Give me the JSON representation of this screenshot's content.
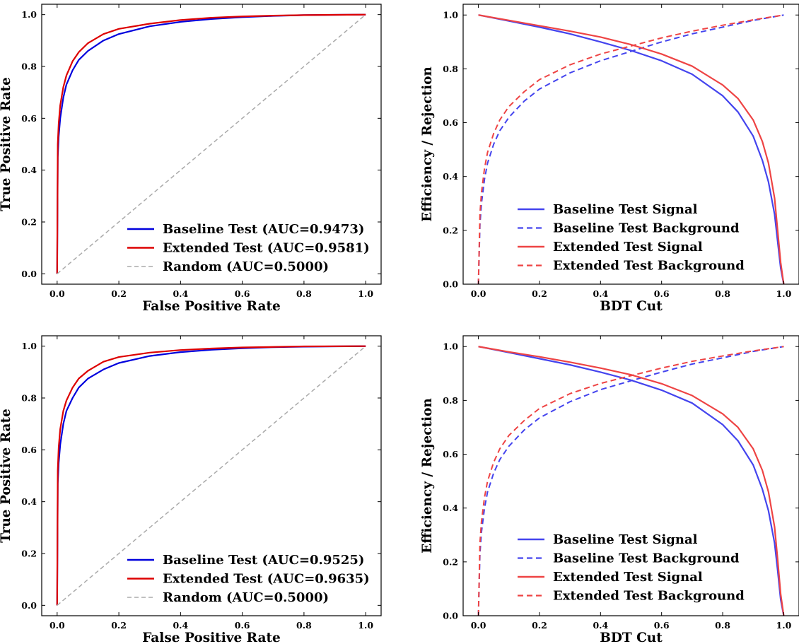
{
  "chart_data": [
    {
      "type": "line",
      "panel": "roc",
      "xlabel": "False Positive Rate",
      "ylabel": "True Positive Rate",
      "xlim": [
        -0.05,
        1.05
      ],
      "ylim": [
        -0.04,
        1.04
      ],
      "xticks": [
        "0.0",
        "0.2",
        "0.4",
        "0.6",
        "0.8",
        "1.0"
      ],
      "yticks": [
        "0.0",
        "0.2",
        "0.4",
        "0.6",
        "0.8",
        "1.0"
      ],
      "legend_position": "lower-right",
      "series": [
        {
          "name": "Baseline Test (AUC=0.9473)",
          "color": "#0000dd",
          "style": "solid",
          "x": [
            0,
            0.002,
            0.005,
            0.01,
            0.02,
            0.03,
            0.05,
            0.07,
            0.1,
            0.15,
            0.2,
            0.3,
            0.4,
            0.5,
            0.6,
            0.7,
            0.8,
            0.9,
            1.0
          ],
          "y": [
            0,
            0.45,
            0.53,
            0.6,
            0.68,
            0.73,
            0.785,
            0.825,
            0.86,
            0.9,
            0.925,
            0.955,
            0.972,
            0.983,
            0.99,
            0.995,
            0.998,
            0.999,
            1.0
          ]
        },
        {
          "name": "Extended Test (AUC=0.9581)",
          "color": "#dd0000",
          "style": "solid",
          "x": [
            0,
            0.002,
            0.005,
            0.01,
            0.02,
            0.03,
            0.05,
            0.07,
            0.1,
            0.15,
            0.2,
            0.3,
            0.4,
            0.5,
            0.6,
            0.7,
            0.8,
            0.9,
            1.0
          ],
          "y": [
            0,
            0.5,
            0.58,
            0.65,
            0.72,
            0.765,
            0.82,
            0.855,
            0.89,
            0.925,
            0.945,
            0.965,
            0.979,
            0.988,
            0.993,
            0.996,
            0.998,
            0.999,
            1.0
          ]
        },
        {
          "name": "Random (AUC=0.5000)",
          "color": "#aaaaaa",
          "style": "dashed",
          "x": [
            0,
            1
          ],
          "y": [
            0,
            1
          ]
        }
      ]
    },
    {
      "type": "line",
      "panel": "efficiency",
      "xlabel": "BDT Cut",
      "ylabel": "Efficiency / Rejection",
      "xlim": [
        -0.05,
        1.05
      ],
      "ylim": [
        0.0,
        1.04
      ],
      "xticks": [
        "0.0",
        "0.2",
        "0.4",
        "0.6",
        "0.8",
        "1.0"
      ],
      "yticks": [
        "0.0",
        "0.2",
        "0.4",
        "0.6",
        "0.8",
        "1.0"
      ],
      "legend_position": "lower-center",
      "series": [
        {
          "name": "Baseline Test Signal",
          "color": "#4444ee",
          "style": "solid",
          "x": [
            0,
            0.1,
            0.2,
            0.3,
            0.4,
            0.5,
            0.6,
            0.7,
            0.8,
            0.85,
            0.9,
            0.93,
            0.95,
            0.97,
            0.98,
            0.99,
            1.0
          ],
          "y": [
            1.0,
            0.978,
            0.955,
            0.93,
            0.9,
            0.868,
            0.83,
            0.78,
            0.7,
            0.64,
            0.55,
            0.46,
            0.38,
            0.26,
            0.16,
            0.06,
            0.0
          ]
        },
        {
          "name": "Baseline Test Background",
          "color": "#4444ee",
          "style": "dashed",
          "x": [
            0,
            0.005,
            0.01,
            0.02,
            0.03,
            0.05,
            0.07,
            0.1,
            0.15,
            0.2,
            0.3,
            0.4,
            0.5,
            0.6,
            0.7,
            0.8,
            0.9,
            1.0
          ],
          "y": [
            0.0,
            0.22,
            0.3,
            0.39,
            0.45,
            0.52,
            0.57,
            0.62,
            0.68,
            0.725,
            0.785,
            0.83,
            0.865,
            0.9,
            0.93,
            0.955,
            0.98,
            1.0
          ]
        },
        {
          "name": "Extended Test Signal",
          "color": "#ee4444",
          "style": "solid",
          "x": [
            0,
            0.1,
            0.2,
            0.3,
            0.4,
            0.5,
            0.6,
            0.7,
            0.8,
            0.85,
            0.9,
            0.93,
            0.95,
            0.97,
            0.98,
            0.99,
            1.0
          ],
          "y": [
            1.0,
            0.98,
            0.96,
            0.94,
            0.918,
            0.89,
            0.855,
            0.81,
            0.74,
            0.69,
            0.61,
            0.53,
            0.45,
            0.32,
            0.2,
            0.08,
            0.0
          ]
        },
        {
          "name": "Extended Test Background",
          "color": "#ee4444",
          "style": "dashed",
          "x": [
            0,
            0.005,
            0.01,
            0.02,
            0.03,
            0.05,
            0.07,
            0.1,
            0.15,
            0.2,
            0.3,
            0.4,
            0.5,
            0.6,
            0.7,
            0.8,
            0.9,
            1.0
          ],
          "y": [
            0.0,
            0.26,
            0.34,
            0.43,
            0.49,
            0.56,
            0.61,
            0.66,
            0.715,
            0.76,
            0.815,
            0.855,
            0.885,
            0.915,
            0.94,
            0.962,
            0.982,
            1.0
          ]
        }
      ]
    },
    {
      "type": "line",
      "panel": "roc",
      "xlabel": "False Positive Rate",
      "ylabel": "True Positive Rate",
      "xlim": [
        -0.05,
        1.05
      ],
      "ylim": [
        -0.04,
        1.04
      ],
      "xticks": [
        "0.0",
        "0.2",
        "0.4",
        "0.6",
        "0.8",
        "1.0"
      ],
      "yticks": [
        "0.0",
        "0.2",
        "0.4",
        "0.6",
        "0.8",
        "1.0"
      ],
      "legend_position": "lower-right",
      "series": [
        {
          "name": "Baseline Test (AUC=0.9525)",
          "color": "#0000dd",
          "style": "solid",
          "x": [
            0,
            0.002,
            0.005,
            0.01,
            0.02,
            0.03,
            0.05,
            0.07,
            0.1,
            0.15,
            0.2,
            0.3,
            0.4,
            0.5,
            0.6,
            0.7,
            0.8,
            0.9,
            1.0
          ],
          "y": [
            0,
            0.47,
            0.55,
            0.62,
            0.7,
            0.75,
            0.8,
            0.84,
            0.875,
            0.91,
            0.935,
            0.962,
            0.977,
            0.986,
            0.992,
            0.996,
            0.998,
            0.999,
            1.0
          ]
        },
        {
          "name": "Extended Test (AUC=0.9635)",
          "color": "#dd0000",
          "style": "solid",
          "x": [
            0,
            0.002,
            0.005,
            0.01,
            0.02,
            0.03,
            0.05,
            0.07,
            0.1,
            0.15,
            0.2,
            0.3,
            0.4,
            0.5,
            0.6,
            0.7,
            0.8,
            0.9,
            1.0
          ],
          "y": [
            0,
            0.52,
            0.61,
            0.68,
            0.75,
            0.79,
            0.84,
            0.875,
            0.905,
            0.94,
            0.958,
            0.975,
            0.985,
            0.991,
            0.995,
            0.997,
            0.999,
            0.9995,
            1.0
          ]
        },
        {
          "name": "Random (AUC=0.5000)",
          "color": "#aaaaaa",
          "style": "dashed",
          "x": [
            0,
            1
          ],
          "y": [
            0,
            1
          ]
        }
      ]
    },
    {
      "type": "line",
      "panel": "efficiency",
      "xlabel": "BDT Cut",
      "ylabel": "Efficiency / Rejection",
      "xlim": [
        -0.05,
        1.05
      ],
      "ylim": [
        0.0,
        1.04
      ],
      "xticks": [
        "0.0",
        "0.2",
        "0.4",
        "0.6",
        "0.8",
        "1.0"
      ],
      "yticks": [
        "0.0",
        "0.2",
        "0.4",
        "0.6",
        "0.8",
        "1.0"
      ],
      "legend_position": "lower-center",
      "series": [
        {
          "name": "Baseline Test Signal",
          "color": "#4444ee",
          "style": "solid",
          "x": [
            0,
            0.1,
            0.2,
            0.3,
            0.4,
            0.5,
            0.6,
            0.7,
            0.8,
            0.85,
            0.9,
            0.93,
            0.95,
            0.97,
            0.98,
            0.99,
            1.0
          ],
          "y": [
            1.0,
            0.978,
            0.955,
            0.932,
            0.905,
            0.875,
            0.838,
            0.79,
            0.71,
            0.65,
            0.56,
            0.47,
            0.39,
            0.27,
            0.17,
            0.06,
            0.0
          ]
        },
        {
          "name": "Baseline Test Background",
          "color": "#4444ee",
          "style": "dashed",
          "x": [
            0,
            0.005,
            0.01,
            0.02,
            0.03,
            0.05,
            0.07,
            0.1,
            0.15,
            0.2,
            0.3,
            0.4,
            0.5,
            0.6,
            0.7,
            0.8,
            0.9,
            1.0
          ],
          "y": [
            0.0,
            0.23,
            0.31,
            0.4,
            0.46,
            0.53,
            0.58,
            0.63,
            0.69,
            0.735,
            0.795,
            0.84,
            0.873,
            0.905,
            0.935,
            0.958,
            0.982,
            1.0
          ]
        },
        {
          "name": "Extended Test Signal",
          "color": "#ee4444",
          "style": "solid",
          "x": [
            0,
            0.1,
            0.2,
            0.3,
            0.4,
            0.5,
            0.6,
            0.7,
            0.8,
            0.85,
            0.9,
            0.93,
            0.95,
            0.97,
            0.98,
            0.99,
            1.0
          ],
          "y": [
            1.0,
            0.98,
            0.962,
            0.942,
            0.92,
            0.895,
            0.862,
            0.818,
            0.75,
            0.7,
            0.62,
            0.54,
            0.46,
            0.33,
            0.21,
            0.08,
            0.0
          ]
        },
        {
          "name": "Extended Test Background",
          "color": "#ee4444",
          "style": "dashed",
          "x": [
            0,
            0.005,
            0.01,
            0.02,
            0.03,
            0.05,
            0.07,
            0.1,
            0.15,
            0.2,
            0.3,
            0.4,
            0.5,
            0.6,
            0.7,
            0.8,
            0.9,
            1.0
          ],
          "y": [
            0.0,
            0.27,
            0.35,
            0.44,
            0.5,
            0.57,
            0.62,
            0.67,
            0.725,
            0.77,
            0.825,
            0.863,
            0.892,
            0.92,
            0.945,
            0.965,
            0.984,
            1.0
          ]
        }
      ]
    }
  ]
}
